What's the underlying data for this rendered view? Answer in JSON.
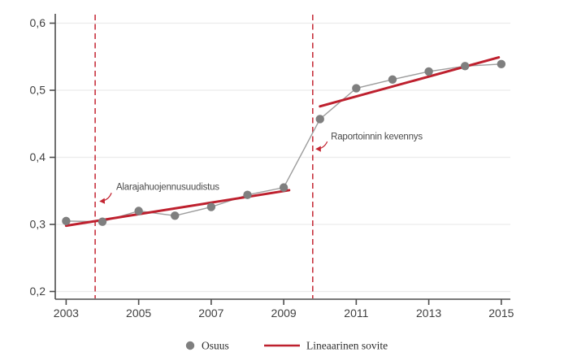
{
  "chart_data": {
    "type": "line",
    "title": "",
    "xlabel": "",
    "ylabel": "",
    "x": [
      2003,
      2004,
      2005,
      2006,
      2007,
      2008,
      2009,
      2010,
      2011,
      2012,
      2013,
      2014,
      2015
    ],
    "series": [
      {
        "name": "Osuus",
        "style": "connected-scatter",
        "values": [
          0.305,
          0.304,
          0.32,
          0.313,
          0.326,
          0.344,
          0.355,
          0.457,
          0.503,
          0.516,
          0.528,
          0.536,
          0.539
        ]
      }
    ],
    "fit_lines": [
      {
        "name": "Lineaarinen sovite",
        "x1": 2003.0,
        "y1": 0.298,
        "x2": 2009.15,
        "y2": 0.351
      },
      {
        "name": "Lineaarinen sovite",
        "x1": 2010.0,
        "y1": 0.476,
        "x2": 2014.93,
        "y2": 0.549
      }
    ],
    "ref_lines": [
      {
        "x": 2003.8,
        "style": "dashed"
      },
      {
        "x": 2009.8,
        "style": "dashed"
      }
    ],
    "annotations": [
      {
        "text": "Alarajahuojennusuudistus",
        "text_x": 2004.38,
        "text_y": 0.3565,
        "arrow_from_x": 2004.25,
        "arrow_from_y": 0.347,
        "arrow_to_x": 2003.93,
        "arrow_to_y": 0.3345
      },
      {
        "text": "Raportoinnin kevennys",
        "text_x": 2010.3,
        "text_y": 0.4315,
        "arrow_from_x": 2010.2,
        "arrow_from_y": 0.4235,
        "arrow_to_x": 2009.89,
        "arrow_to_y": 0.4125
      }
    ],
    "x_ticks": [
      2003,
      2005,
      2007,
      2009,
      2011,
      2013,
      2015
    ],
    "y_ticks": {
      "values": [
        0.2,
        0.3,
        0.4,
        0.5,
        0.6
      ],
      "labels": [
        "0,2",
        "0,3",
        "0,4",
        "0,5",
        "0,6"
      ]
    },
    "xlim": [
      2002.7,
      2015.25
    ],
    "ylim": [
      0.2,
      0.6
    ],
    "grid": "horizontal",
    "legend": {
      "position": "bottom-center",
      "items": [
        {
          "label": "Osuus",
          "marker": "circle"
        },
        {
          "label": "Lineaarinen sovite",
          "marker": "line"
        }
      ]
    }
  },
  "colors": {
    "fit_red": "#be202e",
    "ref_red": "#c32431",
    "point_gray": "#7f7f7f",
    "series_line_gray": "#9d9d9d",
    "grid_gray": "#ececec",
    "axis_gray": "#4d4d4d",
    "tick_text": "#414141",
    "background": "#ffffff"
  }
}
